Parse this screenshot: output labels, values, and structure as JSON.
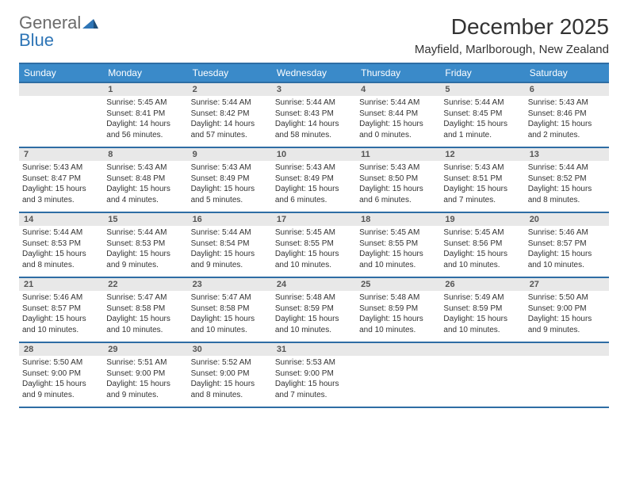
{
  "brand": {
    "part1": "General",
    "part2": "Blue"
  },
  "title": "December 2025",
  "location": "Mayfield, Marlborough, New Zealand",
  "header_bg": "#3a8ac9",
  "border_color": "#2e6da4",
  "daynum_bg": "#e8e8e8",
  "days": [
    "Sunday",
    "Monday",
    "Tuesday",
    "Wednesday",
    "Thursday",
    "Friday",
    "Saturday"
  ],
  "weeks": [
    [
      null,
      {
        "n": "1",
        "sr": "5:45 AM",
        "ss": "8:41 PM",
        "dl": "14 hours and 56 minutes."
      },
      {
        "n": "2",
        "sr": "5:44 AM",
        "ss": "8:42 PM",
        "dl": "14 hours and 57 minutes."
      },
      {
        "n": "3",
        "sr": "5:44 AM",
        "ss": "8:43 PM",
        "dl": "14 hours and 58 minutes."
      },
      {
        "n": "4",
        "sr": "5:44 AM",
        "ss": "8:44 PM",
        "dl": "15 hours and 0 minutes."
      },
      {
        "n": "5",
        "sr": "5:44 AM",
        "ss": "8:45 PM",
        "dl": "15 hours and 1 minute."
      },
      {
        "n": "6",
        "sr": "5:43 AM",
        "ss": "8:46 PM",
        "dl": "15 hours and 2 minutes."
      }
    ],
    [
      {
        "n": "7",
        "sr": "5:43 AM",
        "ss": "8:47 PM",
        "dl": "15 hours and 3 minutes."
      },
      {
        "n": "8",
        "sr": "5:43 AM",
        "ss": "8:48 PM",
        "dl": "15 hours and 4 minutes."
      },
      {
        "n": "9",
        "sr": "5:43 AM",
        "ss": "8:49 PM",
        "dl": "15 hours and 5 minutes."
      },
      {
        "n": "10",
        "sr": "5:43 AM",
        "ss": "8:49 PM",
        "dl": "15 hours and 6 minutes."
      },
      {
        "n": "11",
        "sr": "5:43 AM",
        "ss": "8:50 PM",
        "dl": "15 hours and 6 minutes."
      },
      {
        "n": "12",
        "sr": "5:43 AM",
        "ss": "8:51 PM",
        "dl": "15 hours and 7 minutes."
      },
      {
        "n": "13",
        "sr": "5:44 AM",
        "ss": "8:52 PM",
        "dl": "15 hours and 8 minutes."
      }
    ],
    [
      {
        "n": "14",
        "sr": "5:44 AM",
        "ss": "8:53 PM",
        "dl": "15 hours and 8 minutes."
      },
      {
        "n": "15",
        "sr": "5:44 AM",
        "ss": "8:53 PM",
        "dl": "15 hours and 9 minutes."
      },
      {
        "n": "16",
        "sr": "5:44 AM",
        "ss": "8:54 PM",
        "dl": "15 hours and 9 minutes."
      },
      {
        "n": "17",
        "sr": "5:45 AM",
        "ss": "8:55 PM",
        "dl": "15 hours and 10 minutes."
      },
      {
        "n": "18",
        "sr": "5:45 AM",
        "ss": "8:55 PM",
        "dl": "15 hours and 10 minutes."
      },
      {
        "n": "19",
        "sr": "5:45 AM",
        "ss": "8:56 PM",
        "dl": "15 hours and 10 minutes."
      },
      {
        "n": "20",
        "sr": "5:46 AM",
        "ss": "8:57 PM",
        "dl": "15 hours and 10 minutes."
      }
    ],
    [
      {
        "n": "21",
        "sr": "5:46 AM",
        "ss": "8:57 PM",
        "dl": "15 hours and 10 minutes."
      },
      {
        "n": "22",
        "sr": "5:47 AM",
        "ss": "8:58 PM",
        "dl": "15 hours and 10 minutes."
      },
      {
        "n": "23",
        "sr": "5:47 AM",
        "ss": "8:58 PM",
        "dl": "15 hours and 10 minutes."
      },
      {
        "n": "24",
        "sr": "5:48 AM",
        "ss": "8:59 PM",
        "dl": "15 hours and 10 minutes."
      },
      {
        "n": "25",
        "sr": "5:48 AM",
        "ss": "8:59 PM",
        "dl": "15 hours and 10 minutes."
      },
      {
        "n": "26",
        "sr": "5:49 AM",
        "ss": "8:59 PM",
        "dl": "15 hours and 10 minutes."
      },
      {
        "n": "27",
        "sr": "5:50 AM",
        "ss": "9:00 PM",
        "dl": "15 hours and 9 minutes."
      }
    ],
    [
      {
        "n": "28",
        "sr": "5:50 AM",
        "ss": "9:00 PM",
        "dl": "15 hours and 9 minutes."
      },
      {
        "n": "29",
        "sr": "5:51 AM",
        "ss": "9:00 PM",
        "dl": "15 hours and 9 minutes."
      },
      {
        "n": "30",
        "sr": "5:52 AM",
        "ss": "9:00 PM",
        "dl": "15 hours and 8 minutes."
      },
      {
        "n": "31",
        "sr": "5:53 AM",
        "ss": "9:00 PM",
        "dl": "15 hours and 7 minutes."
      },
      null,
      null,
      null
    ]
  ],
  "labels": {
    "sunrise": "Sunrise:",
    "sunset": "Sunset:",
    "daylight": "Daylight:"
  }
}
